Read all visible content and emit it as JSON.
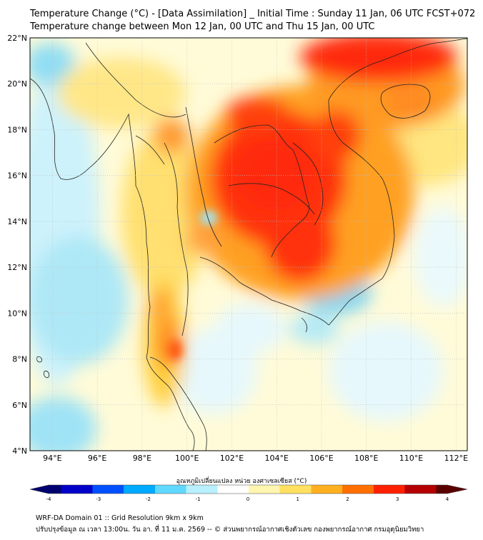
{
  "header": {
    "title_line1": "Temperature Change (°C) - [Data Assimilation] _ Initial Time : Sunday 11 Jan, 06 UTC FCST+072",
    "title_line2": "Temperature change between Mon 12 Jan, 00 UTC and Thu 15 Jan, 00 UTC"
  },
  "map": {
    "lat_ticks": [
      "22°N",
      "20°N",
      "18°N",
      "16°N",
      "14°N",
      "12°N",
      "10°N",
      "8°N",
      "6°N",
      "4°N"
    ],
    "lon_ticks": [
      "94°E",
      "96°E",
      "98°E",
      "100°E",
      "102°E",
      "104°E",
      "106°E",
      "108°E",
      "110°E",
      "112°E"
    ],
    "lat_range": [
      4,
      22
    ],
    "lon_range": [
      93,
      112.5
    ],
    "grid": true
  },
  "colorbar": {
    "label": "อุณหภูมิเปลี่ยนแปลง หน่วย องศาเซลเซียส (°C)",
    "ticks": [
      "-4",
      "-3",
      "-2",
      "-1",
      "0",
      "1",
      "2",
      "3",
      "4"
    ],
    "range": [
      -4,
      4
    ],
    "colors": [
      "#00006e",
      "#0000c8",
      "#0050ff",
      "#00aaff",
      "#60d8ff",
      "#b8f0ff",
      "#ffffff",
      "#fff6b0",
      "#ffe060",
      "#ffb020",
      "#ff7000",
      "#ff2000",
      "#b40000",
      "#5a0000"
    ]
  },
  "footer": {
    "line1": "WRF-DA Domain 01 :: Grid Resolution 9km x 9km",
    "line2": "ปรับปรุงข้อมูล ณ เวลา 13:00น. วัน อา. ที่ 11 ม.ค. 2569 -- © ส่วนพยากรณ์อากาศเชิงตัวเลข กองพยากรณ์อากาศ กรมอุตุนิยมวิทยา"
  }
}
